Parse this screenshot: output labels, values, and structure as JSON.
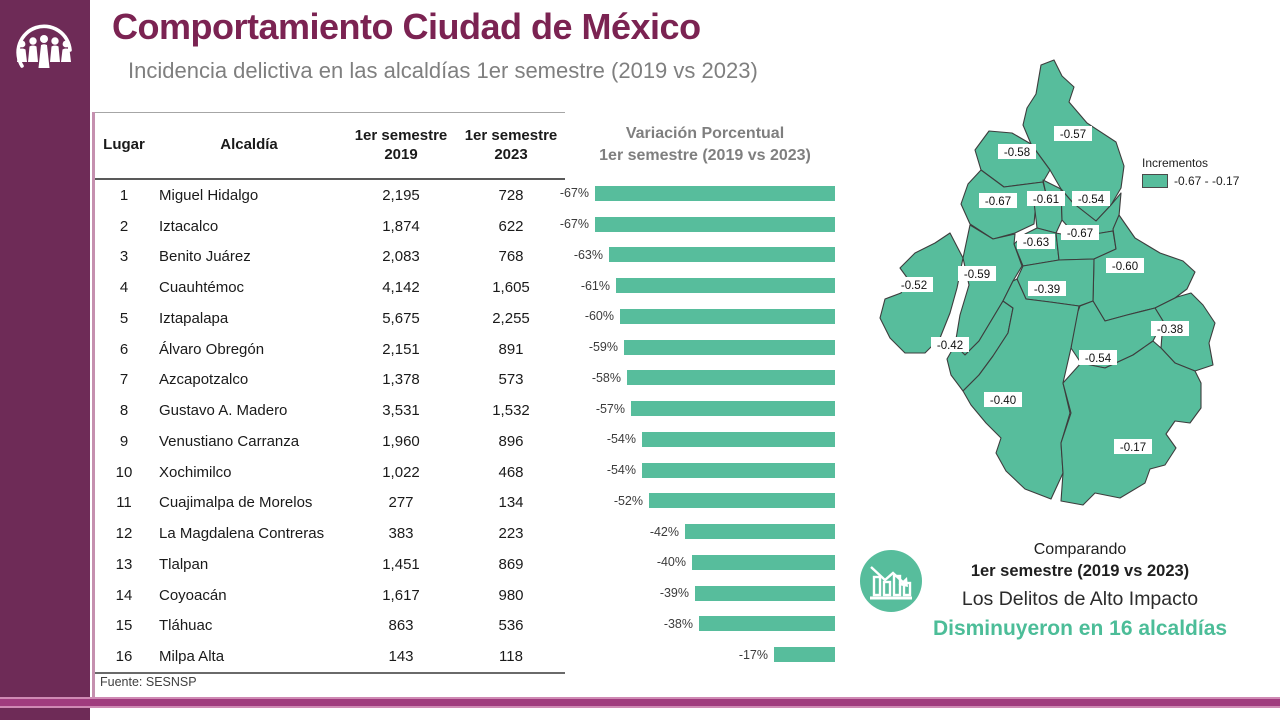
{
  "header": {
    "title": "Comportamiento Ciudad de México",
    "subtitle": "Incidencia delictiva en las alcaldías 1er semestre (2019 vs 2023)"
  },
  "table": {
    "columns": {
      "lugar": "Lugar",
      "alcaldia": "Alcaldía",
      "sem2019_line1": "1er semestre",
      "sem2019_line2": "2019",
      "sem2023_line1": "1er semestre",
      "sem2023_line2": "2023"
    },
    "rows": [
      {
        "lugar": "1",
        "alcaldia": "Miguel Hidalgo",
        "s2019": "2,195",
        "s2023": "728"
      },
      {
        "lugar": "2",
        "alcaldia": "Iztacalco",
        "s2019": "1,874",
        "s2023": "622"
      },
      {
        "lugar": "3",
        "alcaldia": "Benito Juárez",
        "s2019": "2,083",
        "s2023": "768"
      },
      {
        "lugar": "4",
        "alcaldia": "Cuauhtémoc",
        "s2019": "4,142",
        "s2023": "1,605"
      },
      {
        "lugar": "5",
        "alcaldia": "Iztapalapa",
        "s2019": "5,675",
        "s2023": "2,255"
      },
      {
        "lugar": "6",
        "alcaldia": "Álvaro Obregón",
        "s2019": "2,151",
        "s2023": "891"
      },
      {
        "lugar": "7",
        "alcaldia": "Azcapotzalco",
        "s2019": "1,378",
        "s2023": "573"
      },
      {
        "lugar": "8",
        "alcaldia": "Gustavo A. Madero",
        "s2019": "3,531",
        "s2023": "1,532"
      },
      {
        "lugar": "9",
        "alcaldia": "Venustiano Carranza",
        "s2019": "1,960",
        "s2023": "896"
      },
      {
        "lugar": "10",
        "alcaldia": "Xochimilco",
        "s2019": "1,022",
        "s2023": "468"
      },
      {
        "lugar": "11",
        "alcaldia": "Cuajimalpa de Morelos",
        "s2019": "277",
        "s2023": "134"
      },
      {
        "lugar": "12",
        "alcaldia": "La Magdalena Contreras",
        "s2019": "383",
        "s2023": "223"
      },
      {
        "lugar": "13",
        "alcaldia": "Tlalpan",
        "s2019": "1,451",
        "s2023": "869"
      },
      {
        "lugar": "14",
        "alcaldia": "Coyoacán",
        "s2019": "1,617",
        "s2023": "980"
      },
      {
        "lugar": "15",
        "alcaldia": "Tláhuac",
        "s2019": "863",
        "s2023": "536"
      },
      {
        "lugar": "16",
        "alcaldia": "Milpa Alta",
        "s2019": "143",
        "s2023": "118"
      }
    ]
  },
  "chart_data": {
    "type": "bar",
    "orientation": "horizontal",
    "title": "Variación Porcentual",
    "subtitle": "1er semestre (2019 vs 2023)",
    "categories": [
      "Miguel Hidalgo",
      "Iztacalco",
      "Benito Juárez",
      "Cuauhtémoc",
      "Iztapalapa",
      "Álvaro Obregón",
      "Azcapotzalco",
      "Gustavo A. Madero",
      "Venustiano Carranza",
      "Xochimilco",
      "Cuajimalpa de Morelos",
      "La Magdalena Contreras",
      "Tlalpan",
      "Coyoacán",
      "Tláhuac",
      "Milpa Alta"
    ],
    "values": [
      -67,
      -67,
      -63,
      -61,
      -60,
      -59,
      -58,
      -57,
      -54,
      -54,
      -52,
      -42,
      -40,
      -39,
      -38,
      -17
    ],
    "labels": [
      "-67%",
      "-67%",
      "-63%",
      "-61%",
      "-60%",
      "-59%",
      "-58%",
      "-57%",
      "-54%",
      "-54%",
      "-52%",
      "-42%",
      "-40%",
      "-39%",
      "-38%",
      "-17%"
    ],
    "xlim": [
      -67,
      0
    ],
    "bar_color": "#57BD9C",
    "grid": false,
    "legend": false
  },
  "map": {
    "legend_title": "Incrementos",
    "legend_range": "-0.67 - -0.17",
    "fill_color": "#57BD9C",
    "labels": [
      "-0.57",
      "-0.58",
      "-0.67",
      "-0.61",
      "-0.54",
      "-0.63",
      "-0.67",
      "-0.60",
      "-0.59",
      "-0.52",
      "-0.39",
      "-0.38",
      "-0.42",
      "-0.54",
      "-0.40",
      "-0.17"
    ]
  },
  "summary": {
    "line1": "Comparando",
    "line2": "1er semestre (2019 vs 2023)",
    "line3": "Los Delitos de Alto Impacto",
    "line4": "Disminuyeron en 16 alcaldías"
  },
  "footer": {
    "source": "Fuente: SESNSP"
  },
  "colors": {
    "brand_purple": "#6E2B57",
    "band_magenta": "#A03C7E",
    "title_maroon": "#7B2352",
    "teal": "#57BD9C",
    "teal_text": "#4CBD98",
    "gray_text": "#7F7F7F"
  }
}
